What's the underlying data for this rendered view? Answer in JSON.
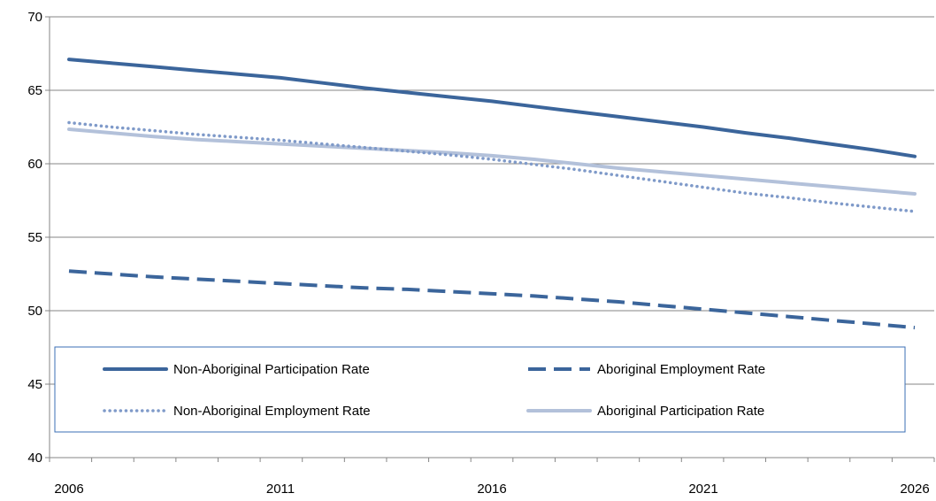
{
  "chart_data": {
    "type": "line",
    "x": [
      2006,
      2007,
      2008,
      2009,
      2010,
      2011,
      2012,
      2013,
      2014,
      2015,
      2016,
      2017,
      2018,
      2019,
      2020,
      2021,
      2022,
      2023,
      2024,
      2025,
      2026
    ],
    "x_tick_labels": [
      "2006",
      "2011",
      "2016",
      "2021",
      "2026"
    ],
    "y_tick_labels": [
      "40",
      "45",
      "50",
      "55",
      "60",
      "65",
      "70"
    ],
    "ylim": [
      40,
      70
    ],
    "xlim": [
      2006,
      2026
    ],
    "grid": "horizontal",
    "legend_position": "inside-bottom",
    "series": [
      {
        "name": "Non-Aboriginal Participation Rate",
        "color": "#3B659B",
        "style": "solid",
        "values": [
          67.1,
          66.85,
          66.6,
          66.35,
          66.1,
          65.85,
          65.5,
          65.15,
          64.85,
          64.55,
          64.25,
          63.9,
          63.55,
          63.2,
          62.85,
          62.5,
          62.1,
          61.75,
          61.35,
          60.95,
          60.5
        ]
      },
      {
        "name": "Aboriginal Employment Rate",
        "color": "#3B659B",
        "style": "dashed",
        "values": [
          52.7,
          52.5,
          52.3,
          52.15,
          52.0,
          51.85,
          51.7,
          51.55,
          51.45,
          51.3,
          51.15,
          51.0,
          50.8,
          50.6,
          50.35,
          50.1,
          49.85,
          49.6,
          49.35,
          49.1,
          48.85
        ]
      },
      {
        "name": "Non-Aboriginal Employment Rate",
        "color": "#7F9AC9",
        "style": "dotted",
        "values": [
          62.8,
          62.5,
          62.25,
          62.0,
          61.8,
          61.6,
          61.35,
          61.1,
          60.85,
          60.6,
          60.3,
          59.95,
          59.6,
          59.2,
          58.8,
          58.4,
          58.0,
          57.7,
          57.35,
          57.05,
          56.75
        ]
      },
      {
        "name": "Aboriginal Participation Rate",
        "color": "#B3C1DA",
        "style": "solid",
        "values": [
          62.35,
          62.1,
          61.85,
          61.65,
          61.5,
          61.35,
          61.2,
          61.05,
          60.9,
          60.75,
          60.55,
          60.3,
          60.0,
          59.7,
          59.45,
          59.2,
          58.95,
          58.7,
          58.45,
          58.2,
          57.95
        ]
      }
    ]
  }
}
